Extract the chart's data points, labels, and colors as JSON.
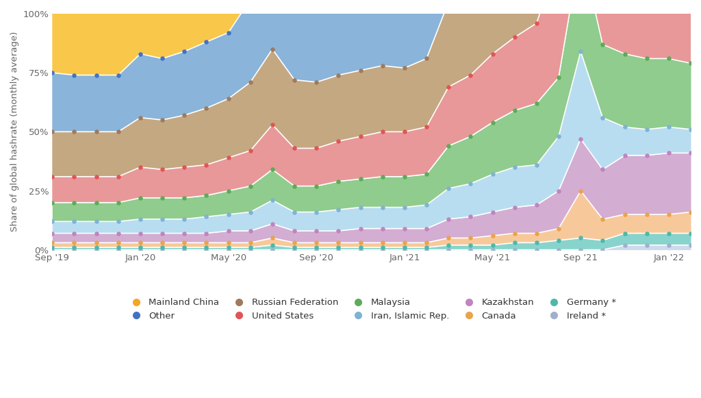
{
  "ylabel": "Share of global hashrate (monthly average)",
  "background_color": "#ffffff",
  "x_labels": [
    "Sep '19",
    "Jan '20",
    "May '20",
    "Sep '20",
    "Jan '21",
    "May '21",
    "Sep '21",
    "Jan '22"
  ],
  "x_tick_positions": [
    0,
    4,
    8,
    12,
    16,
    20,
    24,
    28
  ],
  "num_points": 30,
  "ylim": [
    0,
    100
  ],
  "yticks": [
    0,
    25,
    50,
    75,
    100
  ],
  "ytick_labels": [
    "0%",
    "25%",
    "50%",
    "75%",
    "100%"
  ],
  "layer_order": [
    "Ireland *",
    "Germany *",
    "Canada",
    "Kazakhstan",
    "Iran, Islamic Rep.",
    "Malaysia",
    "United States",
    "Russian Federation",
    "Other",
    "Mainland China"
  ],
  "series": {
    "Mainland China": {
      "fill_color": "#f9c84a",
      "line_color": "#ffffff",
      "marker_color": "#f5a623",
      "values": [
        100,
        100,
        100,
        100,
        100,
        100,
        100,
        100,
        100,
        100,
        100,
        100,
        100,
        100,
        100,
        100,
        100,
        100,
        100,
        100,
        100,
        100,
        100,
        100,
        100,
        100,
        100,
        100,
        100,
        100
      ]
    },
    "Other": {
      "fill_color": "#8ab4d9",
      "line_color": "#ffffff",
      "marker_color": "#4472c4",
      "values": [
        25,
        24,
        24,
        24,
        27,
        26,
        27,
        28,
        28,
        35,
        38,
        35,
        34,
        33,
        33,
        34,
        33,
        35,
        43,
        43,
        46,
        47,
        48,
        51,
        100,
        77,
        80,
        80,
        80,
        79
      ]
    },
    "Russian Federation": {
      "fill_color": "#c4a882",
      "line_color": "#ffffff",
      "marker_color": "#9e7b5e",
      "values": [
        19,
        19,
        19,
        19,
        21,
        21,
        22,
        24,
        25,
        29,
        32,
        29,
        28,
        28,
        28,
        28,
        27,
        29,
        36,
        37,
        39,
        40,
        42,
        44,
        93,
        72,
        73,
        72,
        70,
        70
      ]
    },
    "United States": {
      "fill_color": "#e89898",
      "line_color": "#ffffff",
      "marker_color": "#e05555",
      "values": [
        11,
        11,
        11,
        11,
        13,
        12,
        13,
        13,
        14,
        15,
        19,
        16,
        16,
        17,
        18,
        19,
        19,
        20,
        25,
        26,
        29,
        31,
        34,
        51,
        78,
        62,
        64,
        64,
        64,
        65
      ]
    },
    "Malaysia": {
      "fill_color": "#90cc8d",
      "line_color": "#ffffff",
      "marker_color": "#5dab59",
      "values": [
        8,
        8,
        8,
        8,
        9,
        9,
        9,
        9,
        10,
        11,
        13,
        11,
        11,
        12,
        12,
        13,
        13,
        13,
        18,
        20,
        22,
        24,
        26,
        25,
        44,
        31,
        31,
        30,
        29,
        28
      ]
    },
    "Iran, Islamic Rep.": {
      "fill_color": "#b8ddf0",
      "line_color": "#ffffff",
      "marker_color": "#7fb3d3",
      "values": [
        5,
        5,
        5,
        5,
        6,
        6,
        6,
        7,
        7,
        8,
        10,
        8,
        8,
        9,
        9,
        9,
        9,
        10,
        13,
        14,
        16,
        17,
        17,
        23,
        37,
        22,
        12,
        11,
        11,
        10
      ]
    },
    "Kazakhstan": {
      "fill_color": "#d4add3",
      "line_color": "#ffffff",
      "marker_color": "#c084bf",
      "values": [
        4,
        4,
        4,
        4,
        4,
        4,
        4,
        4,
        5,
        5,
        6,
        5,
        5,
        5,
        6,
        6,
        6,
        6,
        8,
        9,
        10,
        11,
        12,
        16,
        22,
        21,
        25,
        25,
        26,
        25
      ]
    },
    "Canada": {
      "fill_color": "#f7c99a",
      "line_color": "#ffffff",
      "marker_color": "#e8a44a",
      "values": [
        2,
        2,
        2,
        2,
        2,
        2,
        2,
        2,
        2,
        2,
        3,
        2,
        2,
        2,
        2,
        2,
        2,
        2,
        3,
        3,
        4,
        4,
        4,
        5,
        20,
        9,
        8,
        8,
        8,
        9
      ]
    },
    "Germany *": {
      "fill_color": "#88d4cc",
      "line_color": "#ffffff",
      "marker_color": "#4db8aa",
      "values": [
        1,
        1,
        1,
        1,
        1,
        1,
        1,
        1,
        1,
        1,
        2,
        1,
        1,
        1,
        1,
        1,
        1,
        1,
        2,
        2,
        2,
        3,
        3,
        4,
        5,
        4,
        5,
        5,
        5,
        5
      ]
    },
    "Ireland *": {
      "fill_color": "#d0d8ec",
      "line_color": "#ffffff",
      "marker_color": "#a0b0cc",
      "values": [
        0,
        0,
        0,
        0,
        0,
        0,
        0,
        0,
        0,
        0,
        0,
        0,
        0,
        0,
        0,
        0,
        0,
        0,
        0,
        0,
        0,
        0,
        0,
        0,
        0,
        0,
        2,
        2,
        2,
        2
      ]
    }
  },
  "legend_order": [
    "Mainland China",
    "Other",
    "Russian Federation",
    "United States",
    "Malaysia",
    "Iran, Islamic Rep.",
    "Kazakhstan",
    "Canada",
    "Germany *",
    "Ireland *"
  ]
}
